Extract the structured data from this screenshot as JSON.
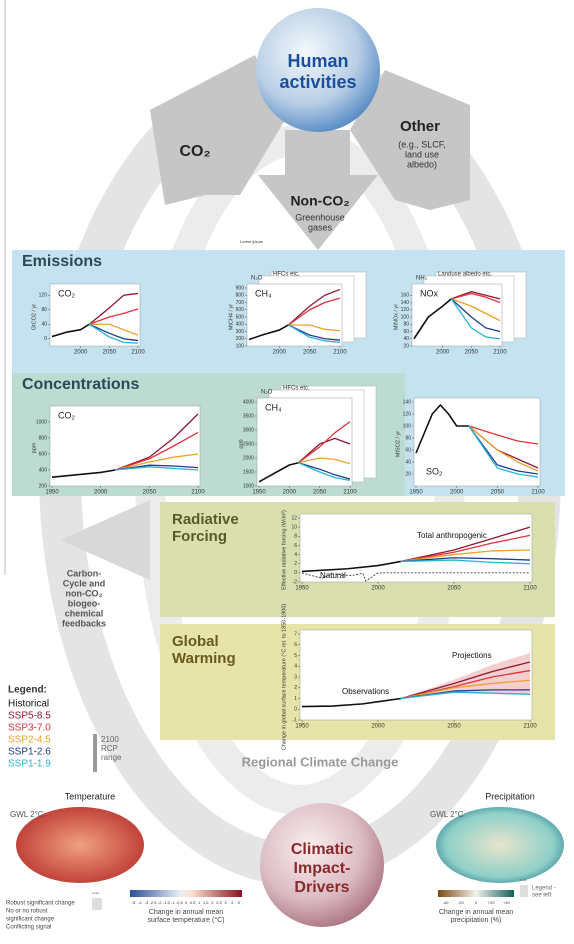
{
  "top": {
    "human": [
      "Human",
      "activities"
    ],
    "co2": "CO₂",
    "other": "Other",
    "other_note": [
      "(e.g., SLCF,",
      "land use",
      "albedo)"
    ],
    "nonco2": "Non-CO₂",
    "nonco2_note": [
      "Greenhouse",
      "gases"
    ],
    "lorem": "Lorem ipsum"
  },
  "sections": {
    "emissions": "Emissions",
    "concentrations": "Concentrations",
    "forcing": [
      "Radiative",
      "Forcing"
    ],
    "warming": [
      "Global",
      "Warming"
    ],
    "feedbacks": [
      "Carbon-",
      "Cycle and",
      "non-CO₂",
      "biogeo-",
      "chemical",
      "feedbacks"
    ],
    "regional": "Regional Climate Change"
  },
  "legend": {
    "title": "Legend:",
    "entries": [
      {
        "name": "Historical",
        "color": "#111111"
      },
      {
        "name": "SSP5-8.5",
        "color": "#8c1a32"
      },
      {
        "name": "SSP3-7.0",
        "color": "#e0323c"
      },
      {
        "name": "SSP2-4.5",
        "color": "#eea02c"
      },
      {
        "name": "SSP1-2.6",
        "color": "#1e3c8c"
      },
      {
        "name": "SSP1-1.9",
        "color": "#27b4d6"
      }
    ],
    "range": [
      "2100",
      "RCP",
      "range"
    ]
  },
  "panels": [
    {
      "title": "CO₂",
      "ylabel": "GtCO2 / yr",
      "xlim": [
        1950,
        2100
      ],
      "xticks": [
        2000,
        2050,
        2100
      ],
      "ylim": [
        -20,
        140
      ],
      "yticks": [
        0,
        40,
        80,
        120
      ],
      "cards": [],
      "series": [
        {
          "x": [
            1950,
            1975,
            2000,
            2015
          ],
          "values": [
            6,
            18,
            25,
            40
          ]
        },
        {
          "x": [
            2015,
            2050,
            2075,
            2100
          ],
          "values": [
            40,
            85,
            120,
            125
          ]
        },
        {
          "x": [
            2015,
            2050,
            2075,
            2100
          ],
          "values": [
            40,
            60,
            70,
            82
          ]
        },
        {
          "x": [
            2015,
            2050,
            2075,
            2100
          ],
          "values": [
            40,
            40,
            25,
            10
          ]
        },
        {
          "x": [
            2015,
            2050,
            2075,
            2100
          ],
          "values": [
            40,
            15,
            0,
            -5
          ]
        },
        {
          "x": [
            2015,
            2050,
            2075,
            2100
          ],
          "values": [
            40,
            5,
            -10,
            -12
          ]
        }
      ]
    },
    {
      "title": "CH₄",
      "ylabel": "MtCH4 / yr",
      "xlim": [
        1950,
        2100
      ],
      "xticks": [
        2000,
        2050,
        2100
      ],
      "ylim": [
        100,
        900
      ],
      "yticks": [
        100,
        200,
        300,
        400,
        500,
        600,
        700,
        800,
        900
      ],
      "cards": [
        "N₂O",
        "HFCs etc."
      ],
      "series": [
        {
          "x": [
            1950,
            1975,
            2000,
            2015
          ],
          "values": [
            190,
            260,
            320,
            390
          ]
        },
        {
          "x": [
            2015,
            2050,
            2075,
            2100
          ],
          "values": [
            390,
            650,
            800,
            880
          ]
        },
        {
          "x": [
            2015,
            2050,
            2075,
            2100
          ],
          "values": [
            390,
            600,
            700,
            760
          ]
        },
        {
          "x": [
            2015,
            2050,
            2075,
            2100
          ],
          "values": [
            390,
            390,
            330,
            310
          ]
        },
        {
          "x": [
            2015,
            2050,
            2075,
            2100
          ],
          "values": [
            390,
            250,
            200,
            180
          ]
        },
        {
          "x": [
            2015,
            2050,
            2075,
            2100
          ],
          "values": [
            390,
            220,
            170,
            150
          ]
        }
      ]
    },
    {
      "title": "NOx",
      "ylabel": "MtNOx / yr",
      "xlim": [
        1950,
        2100
      ],
      "xticks": [
        2000,
        2050,
        2100
      ],
      "ylim": [
        20,
        180
      ],
      "yticks": [
        20,
        40,
        60,
        80,
        100,
        120,
        140,
        160
      ],
      "cards": [
        "NH₃",
        "Landuse albedo etc."
      ],
      "series": [
        {
          "x": [
            1950,
            1975,
            2000,
            2015
          ],
          "values": [
            40,
            100,
            130,
            150
          ]
        },
        {
          "x": [
            2015,
            2050,
            2075,
            2100
          ],
          "values": [
            150,
            170,
            160,
            150
          ]
        },
        {
          "x": [
            2015,
            2050,
            2075,
            2100
          ],
          "values": [
            150,
            165,
            155,
            140
          ]
        },
        {
          "x": [
            2015,
            2050,
            2075,
            2100
          ],
          "values": [
            150,
            130,
            110,
            90
          ]
        },
        {
          "x": [
            2015,
            2050,
            2075,
            2100
          ],
          "values": [
            150,
            100,
            70,
            60
          ]
        },
        {
          "x": [
            2015,
            2050,
            2075,
            2100
          ],
          "values": [
            150,
            70,
            45,
            40
          ]
        }
      ]
    },
    {
      "title": "CO₂",
      "ylabel": "ppm",
      "xlim": [
        1950,
        2100
      ],
      "xticks": [
        1950,
        2000,
        2050,
        2100
      ],
      "ylim": [
        200,
        1150
      ],
      "yticks": [
        200,
        400,
        600,
        800,
        1000
      ],
      "cards": [],
      "series": [
        {
          "x": [
            1950,
            2000,
            2015
          ],
          "values": [
            310,
            370,
            400
          ]
        },
        {
          "x": [
            2015,
            2050,
            2075,
            2100
          ],
          "values": [
            400,
            560,
            800,
            1100
          ]
        },
        {
          "x": [
            2015,
            2050,
            2075,
            2100
          ],
          "values": [
            400,
            540,
            700,
            870
          ]
        },
        {
          "x": [
            2015,
            2050,
            2075,
            2100
          ],
          "values": [
            400,
            500,
            560,
            600
          ]
        },
        {
          "x": [
            2015,
            2050,
            2075,
            2100
          ],
          "values": [
            400,
            460,
            450,
            430
          ]
        },
        {
          "x": [
            2015,
            2050,
            2075,
            2100
          ],
          "values": [
            400,
            440,
            420,
            400
          ]
        }
      ]
    },
    {
      "title": "CH₄",
      "ylabel": "ppb",
      "xlim": [
        1950,
        2100
      ],
      "xticks": [
        1950,
        2000,
        2050,
        2100
      ],
      "ylim": [
        1000,
        4000
      ],
      "yticks": [
        1000,
        1500,
        2000,
        2500,
        3000,
        3500,
        4000
      ],
      "cards": [
        "N₂O",
        "HFCs etc."
      ],
      "series": [
        {
          "x": [
            1950,
            2000,
            2015
          ],
          "values": [
            1150,
            1750,
            1830
          ]
        },
        {
          "x": [
            2015,
            2050,
            2075,
            2100
          ],
          "values": [
            1830,
            2500,
            2700,
            2500
          ]
        },
        {
          "x": [
            2015,
            2050,
            2075,
            2100
          ],
          "values": [
            1830,
            2400,
            2900,
            3300
          ]
        },
        {
          "x": [
            2015,
            2050,
            2075,
            2100
          ],
          "values": [
            1830,
            2000,
            1950,
            1800
          ]
        },
        {
          "x": [
            2015,
            2050,
            2075,
            2100
          ],
          "values": [
            1830,
            1600,
            1400,
            1250
          ]
        },
        {
          "x": [
            2015,
            2050,
            2075,
            2100
          ],
          "values": [
            1830,
            1500,
            1300,
            1200
          ]
        }
      ]
    },
    {
      "title": "SO₂",
      "ylabel": "MtSO2 / yr",
      "xlim": [
        1950,
        2100
      ],
      "xticks": [
        1950,
        2000,
        2050,
        2100
      ],
      "ylim": [
        0,
        140
      ],
      "yticks": [
        20,
        40,
        60,
        80,
        100,
        120,
        140
      ],
      "cards": [],
      "series": [
        {
          "x": [
            1950,
            1970,
            1980,
            1990,
            2000,
            2015
          ],
          "values": [
            55,
            120,
            135,
            120,
            100,
            100
          ]
        },
        {
          "x": [
            2015,
            2050,
            2075,
            2100
          ],
          "values": [
            100,
            60,
            45,
            30
          ]
        },
        {
          "x": [
            2015,
            2050,
            2075,
            2100
          ],
          "values": [
            100,
            85,
            75,
            70
          ]
        },
        {
          "x": [
            2015,
            2050,
            2075,
            2100
          ],
          "values": [
            100,
            60,
            40,
            25
          ]
        },
        {
          "x": [
            2015,
            2050,
            2075,
            2100
          ],
          "values": [
            100,
            35,
            25,
            20
          ]
        },
        {
          "x": [
            2015,
            2050,
            2075,
            2100
          ],
          "values": [
            100,
            30,
            20,
            15
          ]
        }
      ]
    },
    {
      "ylabel": "Effective radiative forcing (W/m²)",
      "xlim": [
        1950,
        2100
      ],
      "xticks": [
        1950,
        2000,
        2050,
        2100
      ],
      "ylim": [
        -2,
        12
      ],
      "yticks": [
        -2,
        0,
        2,
        4,
        6,
        8,
        10,
        12
      ],
      "cards": [],
      "notes": [
        "Total anthropogenic",
        "Natural"
      ],
      "natural": {
        "x": [
          1950,
          1963,
          1970,
          1982,
          1990,
          1992,
          2000,
          2050,
          2100
        ],
        "values": [
          0,
          -1.2,
          -0.2,
          -0.6,
          -0.1,
          -1.8,
          0,
          0,
          0
        ]
      },
      "series": [
        {
          "x": [
            1950,
            1980,
            2000,
            2015
          ],
          "values": [
            0.3,
            0.9,
            1.6,
            2.5
          ]
        },
        {
          "x": [
            2015,
            2050,
            2075,
            2100
          ],
          "values": [
            2.5,
            5,
            7.5,
            10
          ]
        },
        {
          "x": [
            2015,
            2050,
            2075,
            2100
          ],
          "values": [
            2.5,
            4.5,
            6.5,
            8.2
          ]
        },
        {
          "x": [
            2015,
            2050,
            2075,
            2100
          ],
          "values": [
            2.5,
            4,
            4.8,
            5
          ]
        },
        {
          "x": [
            2015,
            2050,
            2075,
            2100
          ],
          "values": [
            2.5,
            3.3,
            3.1,
            2.8
          ]
        },
        {
          "x": [
            2015,
            2050,
            2075,
            2100
          ],
          "values": [
            2.5,
            2.8,
            2.3,
            2
          ]
        }
      ]
    },
    {
      "ylabel": "Change in global surface temperature (°C rel. to 1850-1900)",
      "xlim": [
        1950,
        2100
      ],
      "xticks": [
        1950,
        2000,
        2050,
        2100
      ],
      "ylim": [
        -1,
        7
      ],
      "yticks": [
        -1,
        0,
        1,
        2,
        3,
        4,
        5,
        6,
        7
      ],
      "cards": [],
      "notes": [
        "Projections",
        "Observations"
      ],
      "series": [
        {
          "x": [
            1950,
            1970,
            1990,
            2000,
            2015
          ],
          "values": [
            0.25,
            0.3,
            0.5,
            0.7,
            1
          ]
        },
        {
          "x": [
            2015,
            2050,
            2075,
            2100
          ],
          "values": [
            1,
            2.4,
            3.5,
            4.4
          ]
        },
        {
          "x": [
            2015,
            2050,
            2075,
            2100
          ],
          "values": [
            1,
            2.1,
            3,
            3.6
          ]
        },
        {
          "x": [
            2015,
            2050,
            2075,
            2100
          ],
          "values": [
            1,
            2,
            2.4,
            2.7
          ]
        },
        {
          "x": [
            2015,
            2050,
            2075,
            2100
          ],
          "values": [
            1,
            1.7,
            1.8,
            1.8
          ]
        },
        {
          "x": [
            2015,
            2050,
            2075,
            2100
          ],
          "values": [
            1,
            1.6,
            1.5,
            1.4
          ]
        }
      ]
    }
  ],
  "maps": {
    "temperature": {
      "title": "Temperature",
      "gwl": "GWL 2°C",
      "ticks": [
        -5,
        -4,
        -3,
        -2.5,
        -2,
        -1.5,
        -1,
        -0.5,
        0,
        0.5,
        1,
        1.5,
        2,
        2.5,
        3,
        4,
        5
      ],
      "caption": [
        "Change in annual mean",
        "surface temperature (°C)"
      ],
      "key": [
        "Robust significant change",
        "No or no robust",
        "significant change",
        "Conflicting signal"
      ],
      "color_word": "Color"
    },
    "precipitation": {
      "title": "Precipitation",
      "gwl": "GWL 2°C",
      "ticks": [
        "-40",
        "-20",
        "0",
        "+20",
        "+40"
      ],
      "caption": [
        "Change in annual mean",
        "precipitation (%)"
      ],
      "key": [
        "Legend -",
        "see left"
      ],
      "color_word": "Color"
    }
  },
  "bottom": {
    "cid": [
      "Climatic",
      "Impact-",
      "Drivers"
    ]
  }
}
